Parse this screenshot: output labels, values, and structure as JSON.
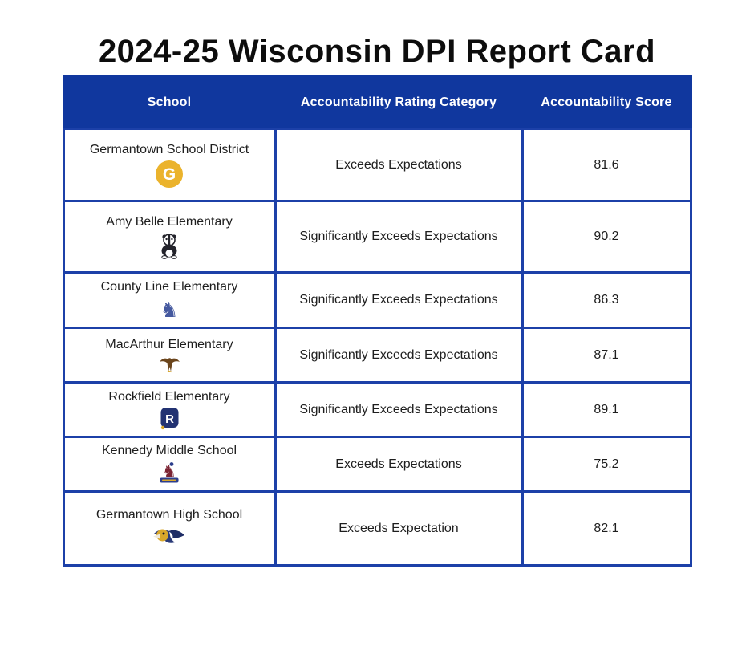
{
  "page_title": "2024-25 Wisconsin DPI Report Card",
  "colors": {
    "header_background": "#10379E",
    "grid_border": "#1C40A8",
    "header_text": "#FFFFFF",
    "body_text": "#1E1E1E",
    "district_logo_gold": "#EBB32C"
  },
  "chart_data": {
    "type": "table",
    "title": "2024-25 Wisconsin DPI Report Card",
    "columns": [
      "School",
      "Accountability Rating Category",
      "Accountability Score"
    ],
    "rows": [
      {
        "school": "Germantown School District",
        "icon": "germantown-g-logo-icon",
        "rating": "Exceeds Expectations",
        "score": "81.6"
      },
      {
        "school": "Amy Belle Elementary",
        "icon": "amy-belle-badger-mascot-icon",
        "rating": "Significantly Exceeds Expectations",
        "score": "90.2"
      },
      {
        "school": "County Line Elementary",
        "icon": "county-line-colt-mascot-icon",
        "rating": "Significantly Exceeds Expectations",
        "score": "86.3"
      },
      {
        "school": "MacArthur Elementary",
        "icon": "macarthur-eagle-mascot-icon",
        "rating": "Significantly Exceeds Expectations",
        "score": "87.1"
      },
      {
        "school": "Rockfield Elementary",
        "icon": "rockfield-r-logo-icon",
        "rating": "Significantly Exceeds Expectations",
        "score": "89.1"
      },
      {
        "school": "Kennedy Middle School",
        "icon": "kennedy-colonial-mascot-icon",
        "rating": "Exceeds Expectations",
        "score": "75.2"
      },
      {
        "school": "Germantown High School",
        "icon": "germantown-warhawk-mascot-icon",
        "rating": "Exceeds Expectation",
        "score": "82.1"
      }
    ]
  }
}
